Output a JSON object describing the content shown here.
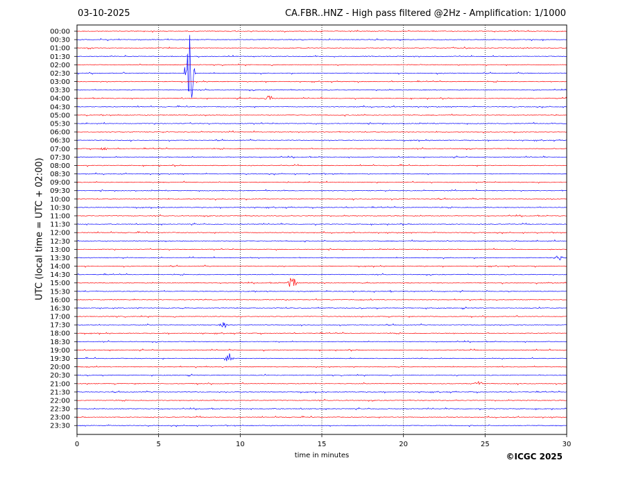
{
  "header": {
    "date": "03-10-2025",
    "title": "CA.FBR..HNZ - High pass filtered @2Hz - Amplification: 1/1000"
  },
  "footer": {
    "copyright": "©ICGC 2025"
  },
  "chart_data": {
    "type": "line",
    "title": "CA.FBR..HNZ - High pass filtered @2Hz - Amplification: 1/1000",
    "xlabel": "time in minutes",
    "ylabel": "UTC (local time = UTC + 02:00)",
    "xlim": [
      0,
      30
    ],
    "xticks": [
      0,
      5,
      10,
      15,
      20,
      25,
      30
    ],
    "row_labels": [
      "00:00",
      "00:30",
      "01:00",
      "01:30",
      "02:00",
      "02:30",
      "03:00",
      "03:30",
      "04:00",
      "04:30",
      "05:00",
      "05:30",
      "06:00",
      "06:30",
      "07:00",
      "07:30",
      "08:00",
      "08:30",
      "09:00",
      "09:30",
      "10:00",
      "10:30",
      "11:00",
      "11:30",
      "12:00",
      "12:30",
      "13:00",
      "13:30",
      "14:00",
      "14:30",
      "15:00",
      "15:30",
      "16:00",
      "16:30",
      "17:00",
      "17:30",
      "18:00",
      "18:30",
      "19:00",
      "19:30",
      "20:00",
      "20:30",
      "21:00",
      "21:30",
      "22:00",
      "22:30",
      "23:00",
      "23:30"
    ],
    "row_colors": [
      "#ff0000",
      "#0000ff"
    ],
    "vertical_grid": "dotted, at each x tick",
    "legend": "none",
    "events": [
      {
        "row": "02:30",
        "x": 6.9,
        "amplitude_rows": 5.2
      },
      {
        "row": "04:00",
        "x": 11.8,
        "amplitude_rows": 0.5
      },
      {
        "row": "15:00",
        "x": 13.2,
        "amplitude_rows": 0.9
      },
      {
        "row": "19:30",
        "x": 9.3,
        "amplitude_rows": 0.7
      },
      {
        "row": "07:00",
        "x": 1.6,
        "amplitude_rows": 0.3
      },
      {
        "row": "17:30",
        "x": 9.0,
        "amplitude_rows": 0.4
      },
      {
        "row": "21:00",
        "x": 24.6,
        "amplitude_rows": 0.3
      },
      {
        "row": "13:30",
        "x": 29.5,
        "amplitude_rows": 0.4
      }
    ]
  }
}
